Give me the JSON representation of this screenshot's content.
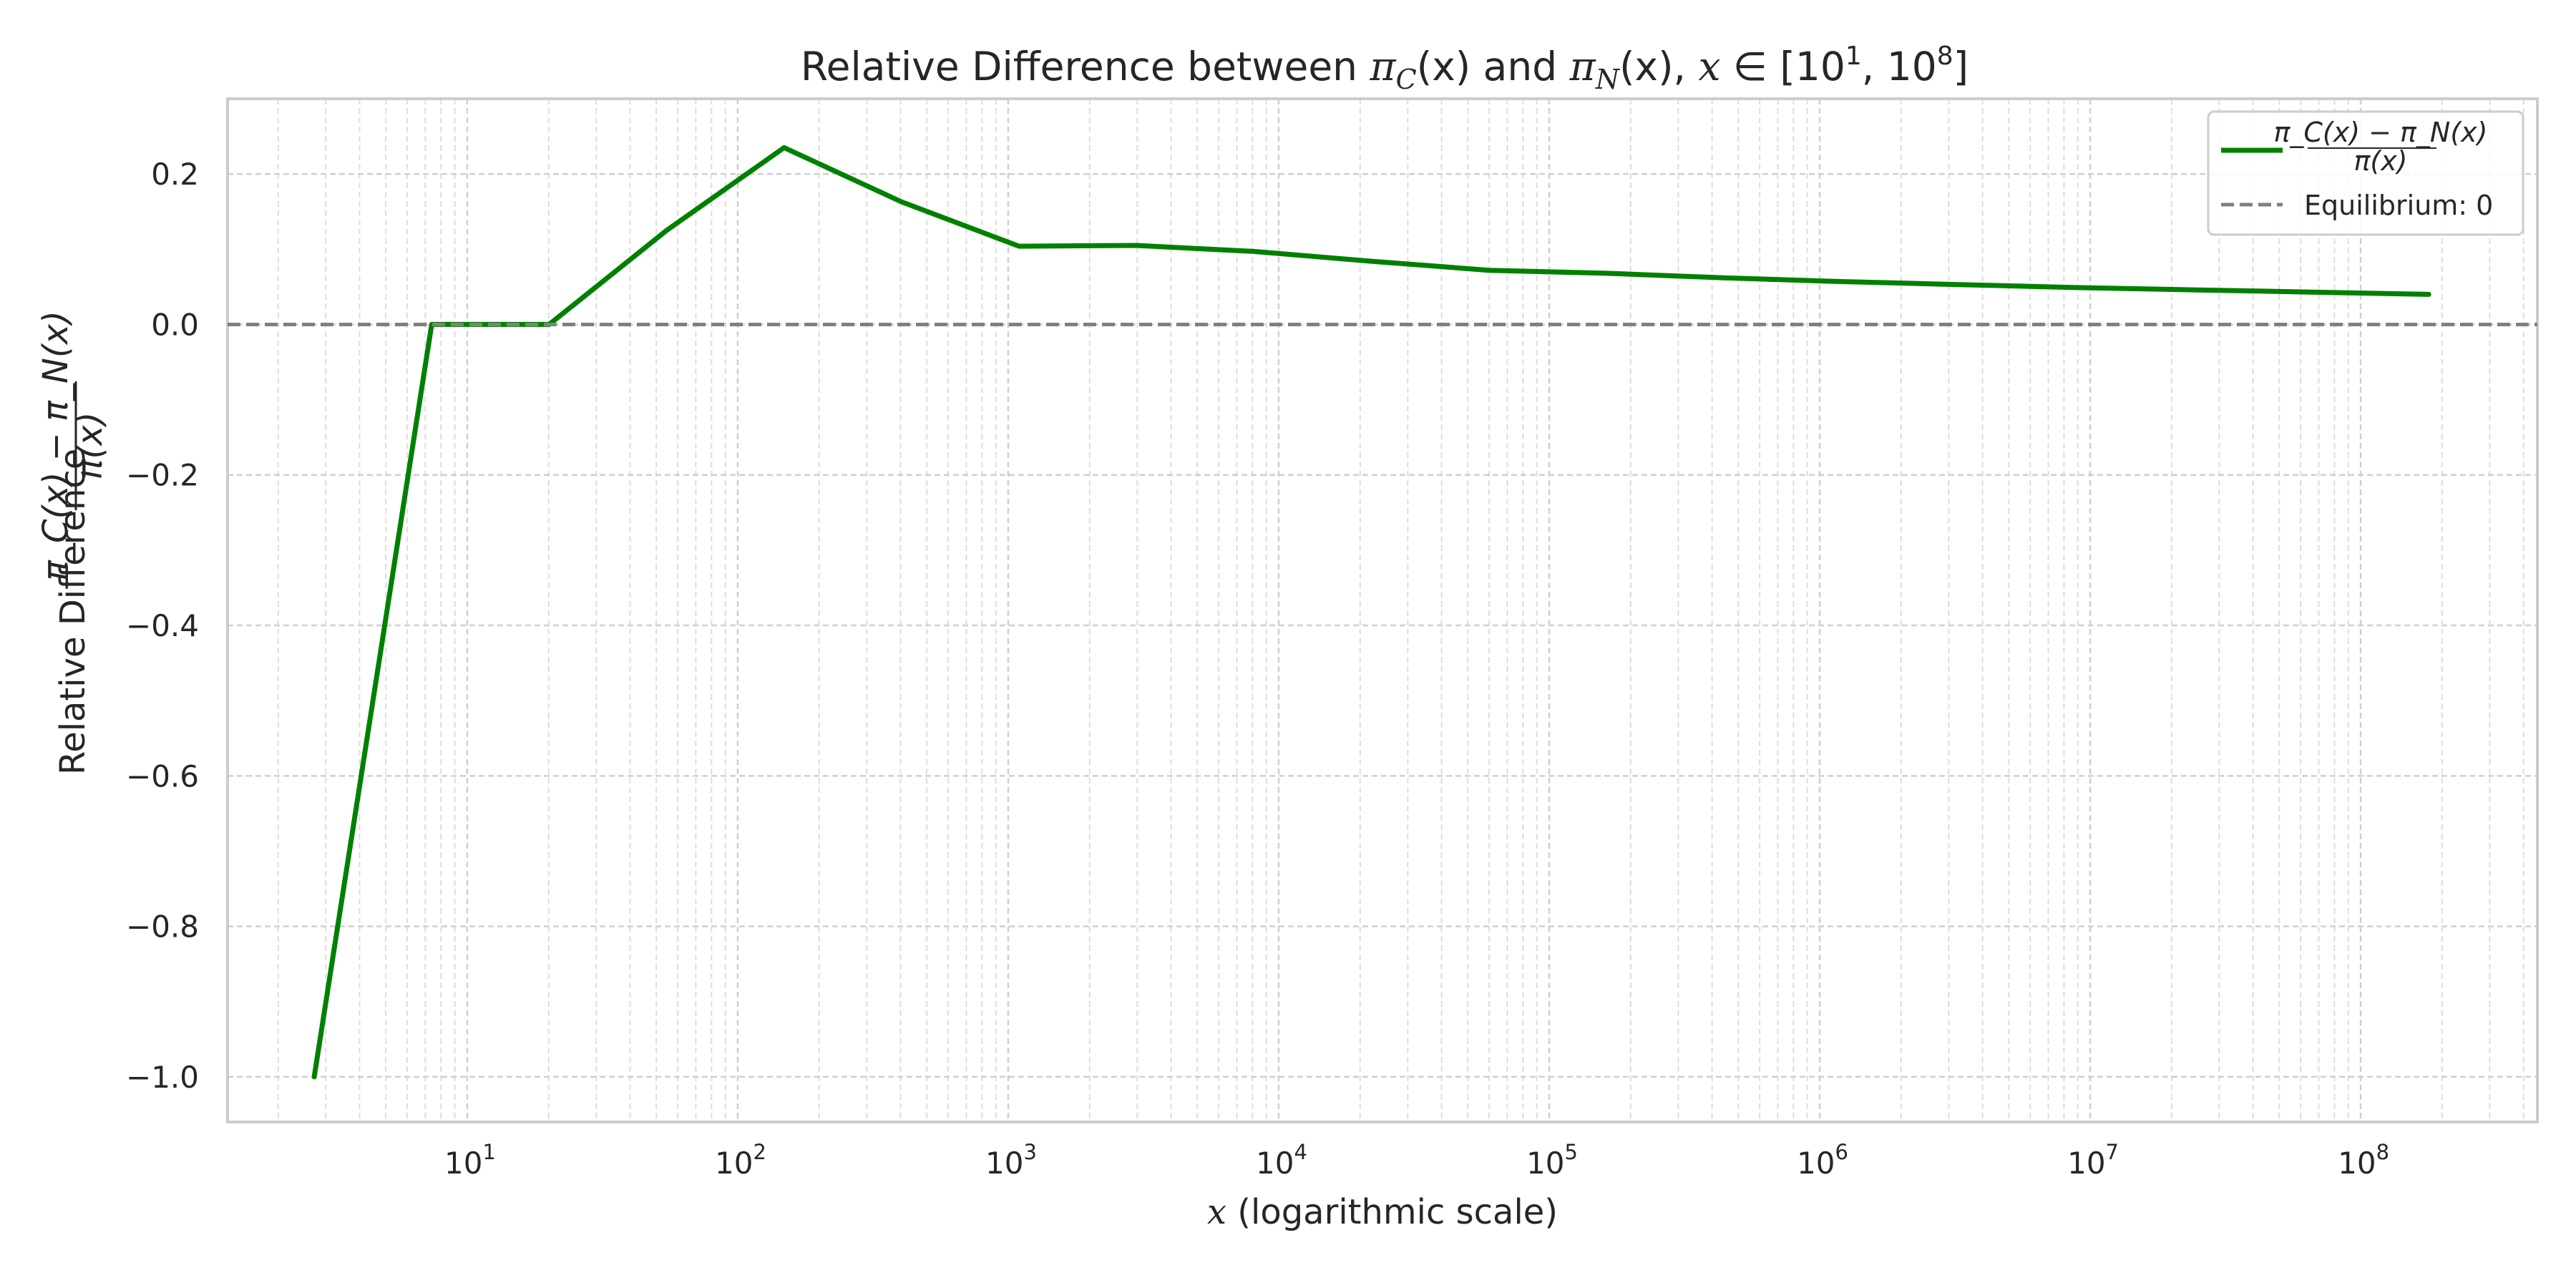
{
  "chart_data": {
    "type": "line",
    "title": {
      "prefix": "Relative Difference between ",
      "f1": "π",
      "f1_sub": "C",
      "f1_arg": "(x)",
      "and": " and ",
      "f2": "π",
      "f2_sub": "N",
      "f2_arg": "(x)",
      "range_prefix": ", ",
      "var": "x",
      "in": " ∈ ",
      "range_open": "[10",
      "range_exp_lo": "1",
      "range_sep": ", 10",
      "range_exp_hi": "8",
      "range_close": "]"
    },
    "xlabel": {
      "var": "x",
      "text": " (logarithmic scale)"
    },
    "ylabel": {
      "text": "Relative Difference ",
      "numerator": "π_C(x) − π_N(x)",
      "denominator": "π(x)"
    },
    "x_scale": "log",
    "xlim": [
      1.3,
      450000000
    ],
    "ylim": [
      -1.06,
      0.3
    ],
    "x_ticks": [
      {
        "value": 10,
        "base": "10",
        "exp": "1"
      },
      {
        "value": 100,
        "base": "10",
        "exp": "2"
      },
      {
        "value": 1000,
        "base": "10",
        "exp": "3"
      },
      {
        "value": 10000,
        "base": "10",
        "exp": "4"
      },
      {
        "value": 100000,
        "base": "10",
        "exp": "5"
      },
      {
        "value": 1000000,
        "base": "10",
        "exp": "6"
      },
      {
        "value": 10000000,
        "base": "10",
        "exp": "7"
      },
      {
        "value": 100000000,
        "base": "10",
        "exp": "8"
      }
    ],
    "y_ticks": [
      {
        "value": 0.2,
        "label": "0.2"
      },
      {
        "value": 0.0,
        "label": "0.0"
      },
      {
        "value": -0.2,
        "label": "−0.2"
      },
      {
        "value": -0.4,
        "label": "−0.4"
      },
      {
        "value": -0.6,
        "label": "−0.6"
      },
      {
        "value": -0.8,
        "label": "−0.8"
      },
      {
        "value": -1.0,
        "label": "−1.0"
      }
    ],
    "grid": true,
    "legend_position": "top-right",
    "series": [
      {
        "name": "(π_C(x) − π_N(x)) / π(x)",
        "color": "#008000",
        "style": "solid",
        "points": [
          {
            "x": 2.718,
            "y": -1.0
          },
          {
            "x": 7.389,
            "y": 0.0
          },
          {
            "x": 20.09,
            "y": 0.0
          },
          {
            "x": 54.6,
            "y": 0.125
          },
          {
            "x": 148.4,
            "y": 0.235
          },
          {
            "x": 403.4,
            "y": 0.163
          },
          {
            "x": 1097,
            "y": 0.104
          },
          {
            "x": 2981,
            "y": 0.105
          },
          {
            "x": 8103,
            "y": 0.097
          },
          {
            "x": 22026,
            "y": 0.084
          },
          {
            "x": 59874,
            "y": 0.072
          },
          {
            "x": 162755,
            "y": 0.068
          },
          {
            "x": 442413,
            "y": 0.062
          },
          {
            "x": 1202604,
            "y": 0.057
          },
          {
            "x": 3269017,
            "y": 0.053
          },
          {
            "x": 8886111,
            "y": 0.049
          },
          {
            "x": 24154953,
            "y": 0.046
          },
          {
            "x": 65659969,
            "y": 0.043
          },
          {
            "x": 178482301,
            "y": 0.04
          }
        ]
      },
      {
        "name": "Equilibrium: 0",
        "color": "#808080",
        "style": "dashed",
        "constant_y": 0
      }
    ],
    "legend": {
      "entries": [
        {
          "numerator": "π_C(x) − π_N(x)",
          "denominator": "π(x)"
        },
        {
          "label": "Equilibrium: 0"
        }
      ]
    }
  }
}
